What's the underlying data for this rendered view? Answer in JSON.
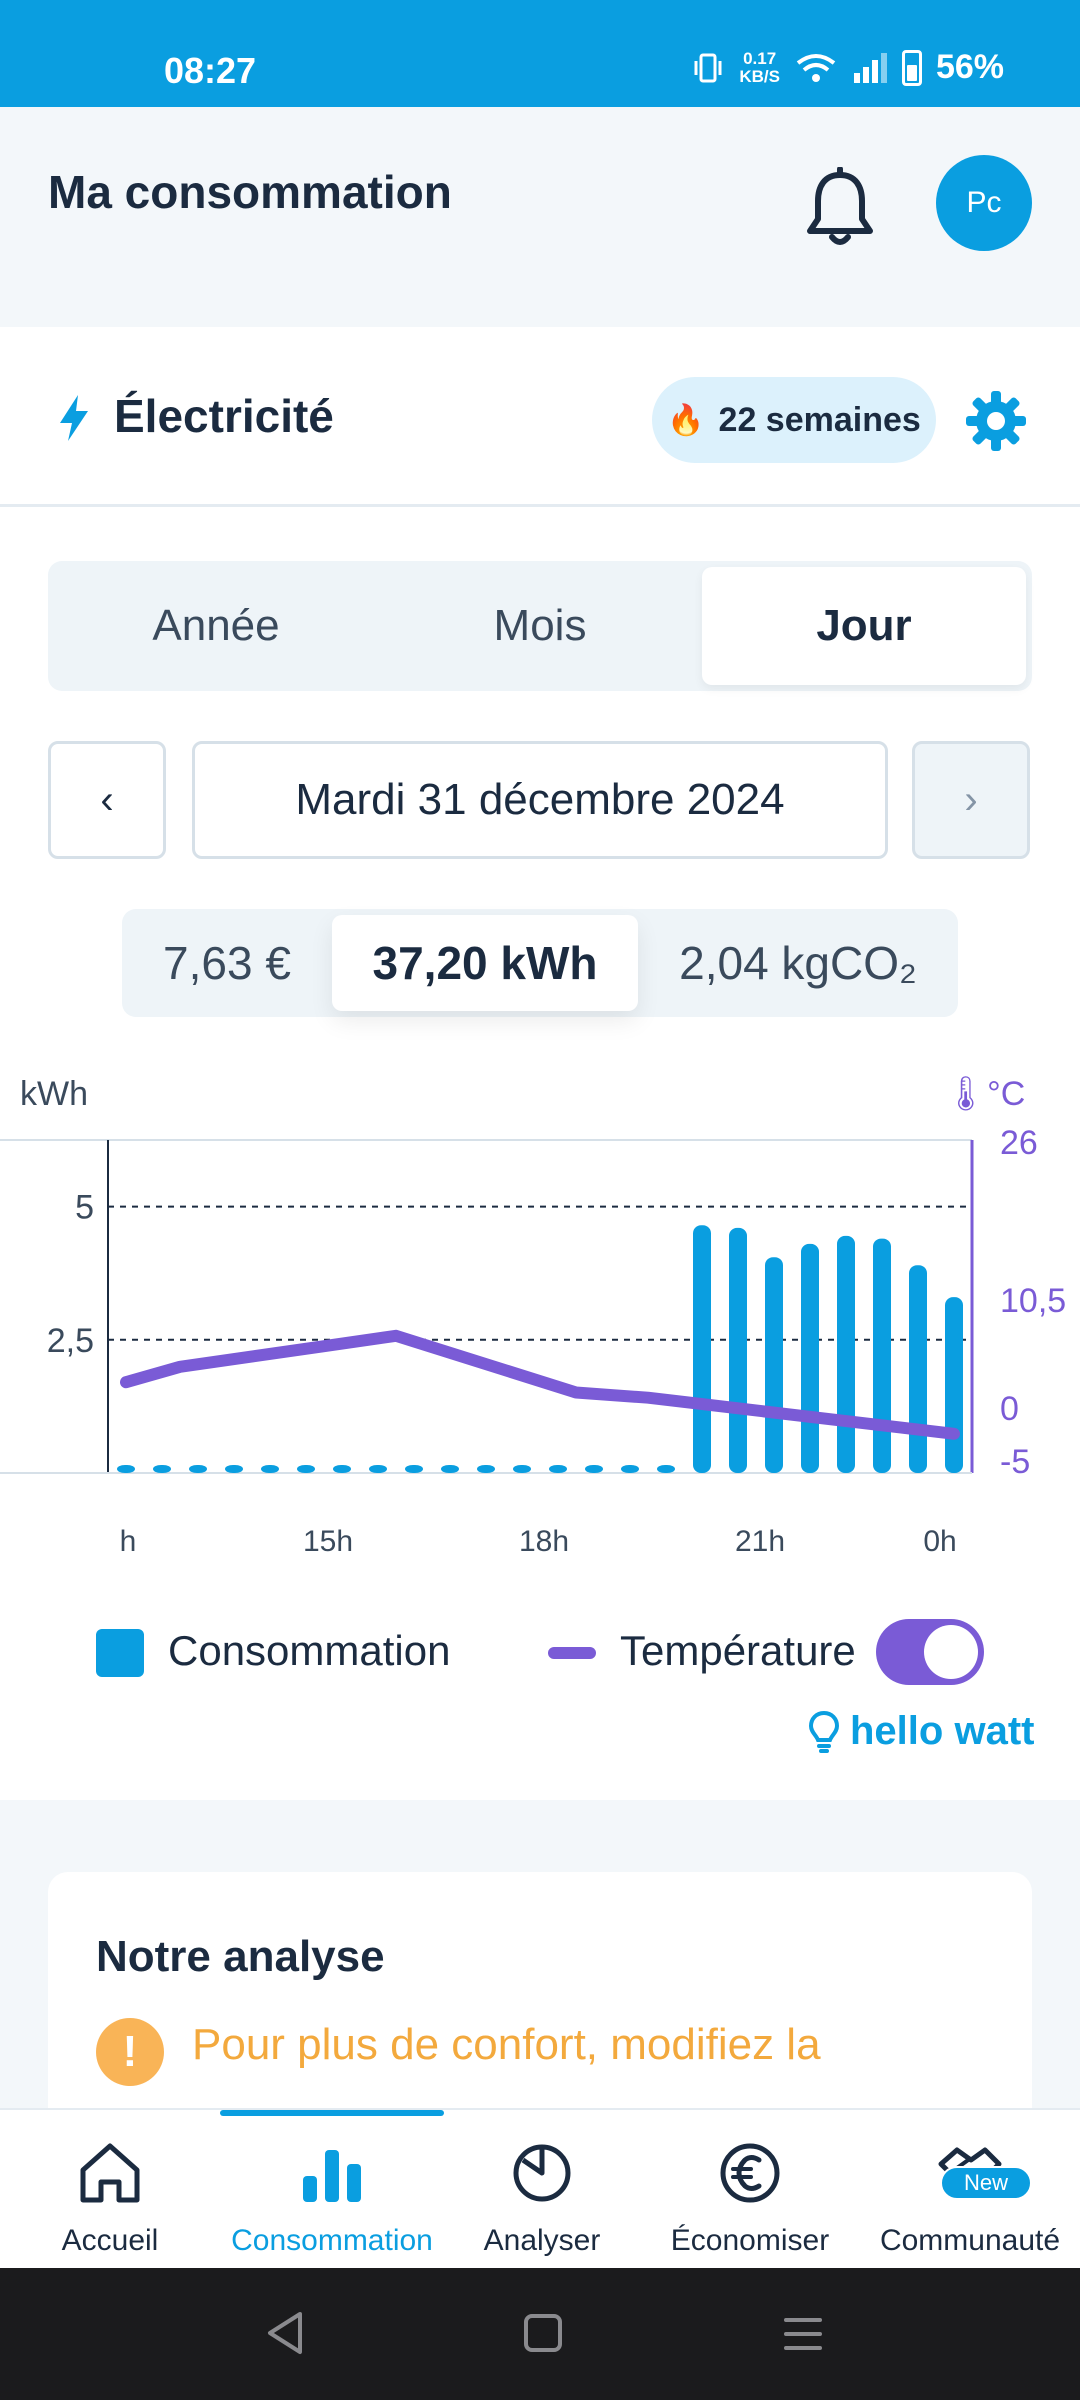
{
  "status_bar": {
    "time": "08:27",
    "net_speed_value": "0.17",
    "net_speed_unit": "KB/S",
    "battery": "56%"
  },
  "header": {
    "title": "Ma consommation",
    "avatar_initials": "Pc"
  },
  "energy": {
    "title": "Électricité",
    "streak": "22 semaines"
  },
  "period_tabs": [
    {
      "label": "Année",
      "active": false
    },
    {
      "label": "Mois",
      "active": false
    },
    {
      "label": "Jour",
      "active": true
    }
  ],
  "date_nav": {
    "prev_label": "‹",
    "date": "Mardi 31 décembre 2024",
    "next_label": "›"
  },
  "metrics": {
    "cost": "7,63 €",
    "energy": "37,20 kWh",
    "co2": "2,04 kgCO₂"
  },
  "chart_data": {
    "type": "bar",
    "y_left": {
      "label": "kWh",
      "ticks": [
        "5",
        "2,5"
      ],
      "range": [
        0,
        6.25
      ]
    },
    "y_right": {
      "label": "°C",
      "ticks": [
        "26",
        "10,5",
        "0",
        "-5"
      ]
    },
    "x_ticks": [
      "h",
      "15h",
      "18h",
      "21h",
      "0h"
    ],
    "x_range": [
      12,
      24
    ],
    "series": [
      {
        "name": "Consommation",
        "type": "bar",
        "x": [
          12.25,
          12.75,
          13.25,
          13.75,
          14.25,
          14.75,
          15.25,
          15.75,
          16.25,
          16.75,
          17.25,
          17.75,
          18.25,
          18.75,
          19.25,
          19.75,
          20.25,
          20.75,
          21.25,
          21.75,
          22.25,
          22.75,
          23.25,
          23.75
        ],
        "values": [
          0.1,
          0.15,
          0.15,
          0.15,
          0.15,
          0.15,
          0.15,
          0.15,
          0.15,
          0.15,
          0.15,
          0.15,
          0.15,
          0.15,
          0.15,
          0.15,
          4.65,
          4.6,
          4.05,
          4.3,
          4.45,
          4.4,
          3.9,
          3.3
        ]
      },
      {
        "name": "Température",
        "type": "line",
        "x": [
          12.25,
          13,
          15,
          16,
          18.5,
          19.5,
          23.75
        ],
        "values": [
          2.5,
          4,
          6,
          7,
          1.5,
          1,
          -2.5
        ]
      }
    ],
    "grid": "dashed-horizontal",
    "legend": "bottom"
  },
  "legend": {
    "consumption": "Consommation",
    "temperature": "Température",
    "temperature_toggle_on": true,
    "brand": "hello watt"
  },
  "analysis": {
    "title": "Notre analyse",
    "warning_text": "Pour plus de confort, modifiez la"
  },
  "bottom_nav": [
    {
      "label": "Accueil",
      "icon": "home-icon",
      "active": false
    },
    {
      "label": "Consommation",
      "icon": "bar-chart-icon",
      "active": true
    },
    {
      "label": "Analyser",
      "icon": "pie-chart-icon",
      "active": false
    },
    {
      "label": "Économiser",
      "icon": "euro-icon",
      "active": false
    },
    {
      "label": "Communauté",
      "icon": "handshake-icon",
      "active": false,
      "badge": "New"
    }
  ],
  "colors": {
    "primary": "#0a9ee0",
    "temperature": "#7a5bd6",
    "warning": "#f3a93d"
  }
}
